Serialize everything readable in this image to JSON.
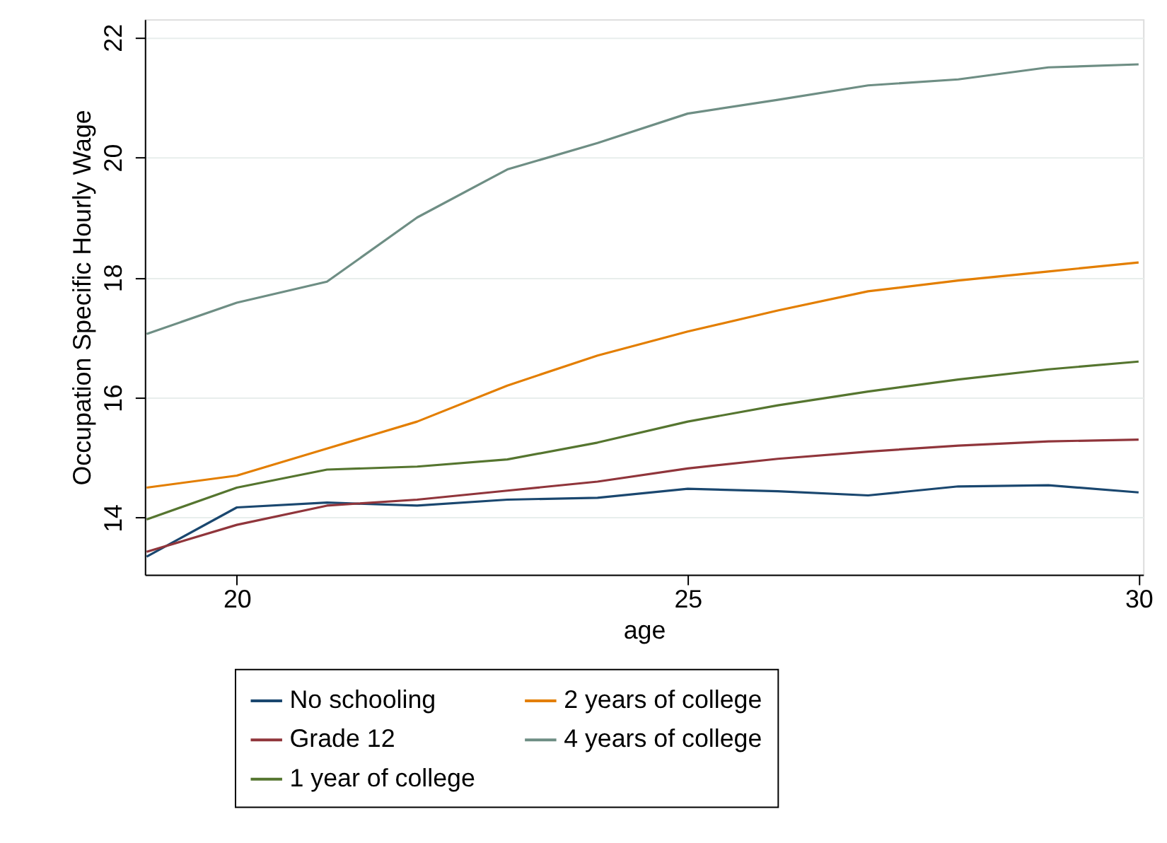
{
  "chart_data": {
    "type": "line",
    "xlabel": "age",
    "ylabel": "Occupation Specific Hourly Wage",
    "x": [
      19,
      20,
      21,
      22,
      23,
      24,
      25,
      26,
      27,
      28,
      29,
      30
    ],
    "xlim": [
      18.98,
      30.05
    ],
    "xticks": [
      20,
      25,
      30
    ],
    "ylim": [
      13.05,
      22.3
    ],
    "yticks": [
      14,
      16,
      18,
      20,
      22
    ],
    "grid": "y",
    "legend": "bottom",
    "line_style": "solid",
    "marker": "none",
    "series": [
      {
        "name": "No schooling",
        "color": "#1a476f",
        "values": [
          13.35,
          14.17,
          14.25,
          14.2,
          14.3,
          14.33,
          14.48,
          14.44,
          14.37,
          14.52,
          14.54,
          14.42
        ]
      },
      {
        "name": "Grade 12",
        "color": "#90353b",
        "values": [
          13.43,
          13.88,
          14.2,
          14.3,
          14.45,
          14.6,
          14.82,
          14.98,
          15.1,
          15.2,
          15.27,
          15.3
        ]
      },
      {
        "name": "1 year of college",
        "color": "#55752f",
        "values": [
          13.97,
          14.5,
          14.8,
          14.85,
          14.97,
          15.25,
          15.6,
          15.87,
          16.1,
          16.3,
          16.47,
          16.6
        ]
      },
      {
        "name": "2 years of college",
        "color": "#e37e00",
        "values": [
          14.5,
          14.7,
          15.15,
          15.6,
          16.2,
          16.7,
          17.1,
          17.45,
          17.77,
          17.95,
          18.1,
          18.25
        ]
      },
      {
        "name": "4 years of college",
        "color": "#6e8e84",
        "values": [
          17.06,
          17.58,
          17.93,
          19.0,
          19.8,
          20.24,
          20.73,
          20.96,
          21.2,
          21.3,
          21.5,
          21.55
        ]
      }
    ]
  }
}
